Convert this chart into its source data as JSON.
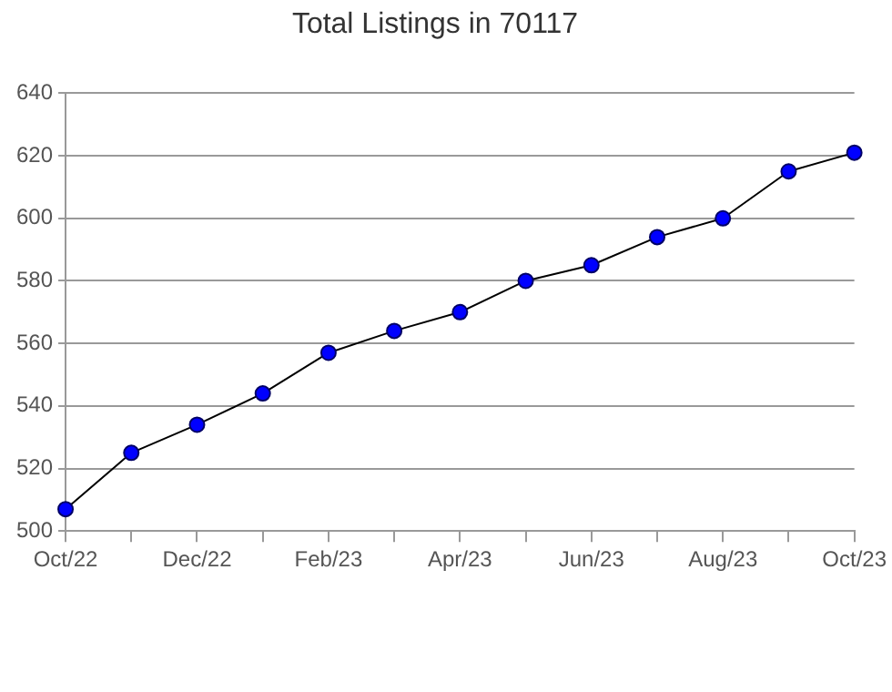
{
  "chart_data": {
    "type": "line",
    "title": "Total Listings in 70117",
    "categories": [
      "Oct/22",
      null,
      "Dec/22",
      null,
      "Feb/23",
      null,
      "Apr/23",
      null,
      "Jun/23",
      null,
      "Aug/23",
      null,
      "Oct/23"
    ],
    "series": [
      {
        "color": "#0000ff",
        "values": [
          507,
          525,
          534,
          544,
          557,
          564,
          570,
          580,
          585,
          594,
          600,
          615,
          621
        ]
      }
    ],
    "ylim": [
      500,
      640
    ],
    "yticks": [
      500,
      520,
      540,
      560,
      580,
      600,
      620,
      640
    ],
    "grid": "y",
    "legend": false,
    "marker": "circle"
  }
}
